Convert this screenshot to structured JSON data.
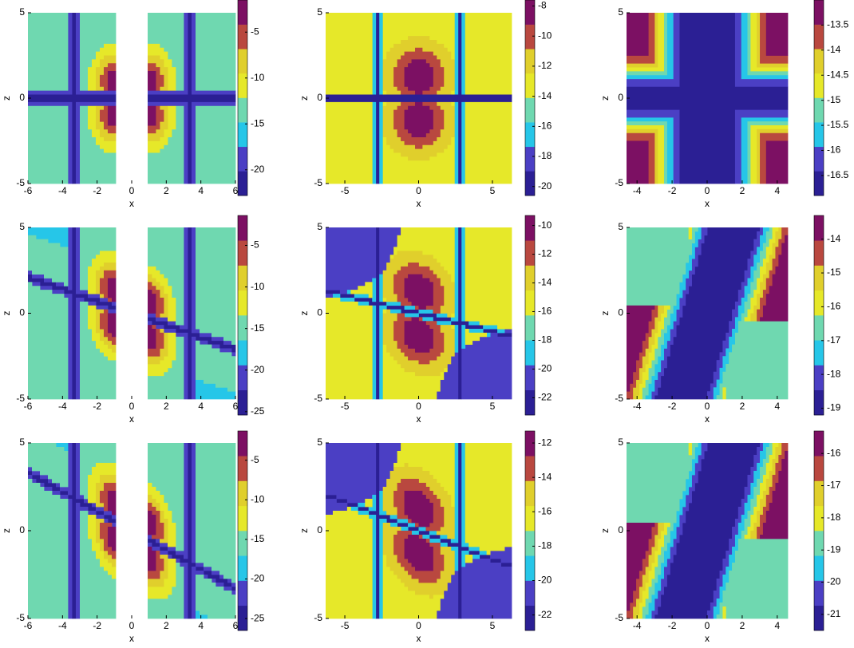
{
  "chart_data": [
    {
      "type": "contour",
      "xlabel": "x",
      "ylabel": "z",
      "xlim": [
        -6,
        6
      ],
      "ylim": [
        -5,
        5
      ],
      "xticks": [
        -6,
        -4,
        -2,
        0,
        2,
        4,
        6
      ],
      "yticks": [
        -5,
        0,
        5
      ],
      "colorbar": {
        "lim": [
          -22.8,
          -1.5
        ],
        "ticks": [
          -5,
          -10,
          -15,
          -20
        ]
      },
      "colors": [
        "#2b1f94",
        "#4b3fc4",
        "#26c6e8",
        "#6fd8b0",
        "#e6e829",
        "#e0cf2c",
        "#b9483f",
        "#7c1063"
      ]
    },
    {
      "type": "contour",
      "xlabel": "x",
      "ylabel": "z",
      "xlim": [
        -6.3,
        6.3
      ],
      "ylim": [
        -5,
        5
      ],
      "xticks": [
        -5,
        0,
        5
      ],
      "yticks": [
        -5,
        0,
        5
      ],
      "colorbar": {
        "lim": [
          -20.6,
          -7.6
        ],
        "ticks": [
          -8,
          -10,
          -12,
          -14,
          -16,
          -18,
          -20
        ]
      },
      "colors": [
        "#2b1f94",
        "#4b3fc4",
        "#26c6e8",
        "#6fd8b0",
        "#e6e829",
        "#e0cf2c",
        "#b9483f",
        "#7c1063"
      ]
    },
    {
      "type": "contour",
      "xlabel": "x",
      "ylabel": "z",
      "xlim": [
        -4.6,
        4.6
      ],
      "ylim": [
        -5,
        5
      ],
      "xticks": [
        -4,
        -2,
        0,
        2,
        4
      ],
      "yticks": [
        -5,
        0,
        5
      ],
      "colorbar": {
        "lim": [
          -16.9,
          -13.0
        ],
        "ticks": [
          -13.5,
          -14,
          -14.5,
          -15,
          -15.5,
          -16,
          -16.5
        ]
      },
      "colors": [
        "#2b1f94",
        "#4b3fc4",
        "#26c6e8",
        "#6fd8b0",
        "#e6e829",
        "#e0cf2c",
        "#b9483f",
        "#7c1063"
      ]
    },
    {
      "type": "contour",
      "xlabel": "x",
      "ylabel": "z",
      "xlim": [
        -6,
        6
      ],
      "ylim": [
        -5,
        5
      ],
      "xticks": [
        -6,
        -4,
        -2,
        0,
        2,
        4,
        6
      ],
      "yticks": [
        -5,
        0,
        5
      ],
      "colorbar": {
        "lim": [
          -25.4,
          -1.4
        ],
        "ticks": [
          -5,
          -10,
          -15,
          -20,
          -25
        ]
      },
      "colors": [
        "#2b1f94",
        "#4b3fc4",
        "#26c6e8",
        "#6fd8b0",
        "#e6e829",
        "#e0cf2c",
        "#b9483f",
        "#7c1063"
      ]
    },
    {
      "type": "contour",
      "xlabel": "x",
      "ylabel": "z",
      "xlim": [
        -6.3,
        6.3
      ],
      "ylim": [
        -5,
        5
      ],
      "xticks": [
        -5,
        0,
        5
      ],
      "yticks": [
        -5,
        0,
        5
      ],
      "colorbar": {
        "lim": [
          -23.2,
          -9.3
        ],
        "ticks": [
          -10,
          -12,
          -14,
          -16,
          -18,
          -20,
          -22
        ]
      },
      "colors": [
        "#2b1f94",
        "#4b3fc4",
        "#26c6e8",
        "#6fd8b0",
        "#e6e829",
        "#e0cf2c",
        "#b9483f",
        "#7c1063"
      ]
    },
    {
      "type": "contour",
      "xlabel": "x",
      "ylabel": "z",
      "xlim": [
        -4.6,
        4.6
      ],
      "ylim": [
        -5,
        5
      ],
      "xticks": [
        -4,
        -2,
        0,
        2,
        4
      ],
      "yticks": [
        -5,
        0,
        5
      ],
      "colorbar": {
        "lim": [
          -19.2,
          -13.3
        ],
        "ticks": [
          -14,
          -15,
          -16,
          -17,
          -18,
          -19
        ]
      },
      "colors": [
        "#2b1f94",
        "#4b3fc4",
        "#26c6e8",
        "#6fd8b0",
        "#e6e829",
        "#e0cf2c",
        "#b9483f",
        "#7c1063"
      ]
    },
    {
      "type": "contour",
      "xlabel": "x",
      "ylabel": "z",
      "xlim": [
        -6,
        6
      ],
      "ylim": [
        -5,
        5
      ],
      "xticks": [
        -6,
        -4,
        -2,
        0,
        2,
        4,
        6
      ],
      "yticks": [
        -5,
        0,
        5
      ],
      "colorbar": {
        "lim": [
          -26.5,
          -1.3
        ],
        "ticks": [
          -5,
          -10,
          -15,
          -20,
          -25
        ]
      },
      "colors": [
        "#2b1f94",
        "#4b3fc4",
        "#26c6e8",
        "#6fd8b0",
        "#e6e829",
        "#e0cf2c",
        "#b9483f",
        "#7c1063"
      ]
    },
    {
      "type": "contour",
      "xlabel": "x",
      "ylabel": "z",
      "xlim": [
        -6.3,
        6.3
      ],
      "ylim": [
        -5,
        5
      ],
      "xticks": [
        -5,
        0,
        5
      ],
      "yticks": [
        -5,
        0,
        5
      ],
      "colorbar": {
        "lim": [
          -22.9,
          -11.3
        ],
        "ticks": [
          -12,
          -14,
          -16,
          -18,
          -20,
          -22
        ]
      },
      "colors": [
        "#2b1f94",
        "#4b3fc4",
        "#26c6e8",
        "#6fd8b0",
        "#e6e829",
        "#e0cf2c",
        "#b9483f",
        "#7c1063"
      ]
    },
    {
      "type": "contour",
      "xlabel": "x",
      "ylabel": "z",
      "xlim": [
        -4.6,
        4.6
      ],
      "ylim": [
        -5,
        5
      ],
      "xticks": [
        -4,
        -2,
        0,
        2,
        4
      ],
      "yticks": [
        -5,
        0,
        5
      ],
      "colorbar": {
        "lim": [
          -21.5,
          -15.3
        ],
        "ticks": [
          -16,
          -17,
          -18,
          -19,
          -20,
          -21
        ]
      },
      "colors": [
        "#2b1f94",
        "#4b3fc4",
        "#26c6e8",
        "#6fd8b0",
        "#e6e829",
        "#e0cf2c",
        "#b9483f",
        "#7c1063"
      ]
    }
  ]
}
